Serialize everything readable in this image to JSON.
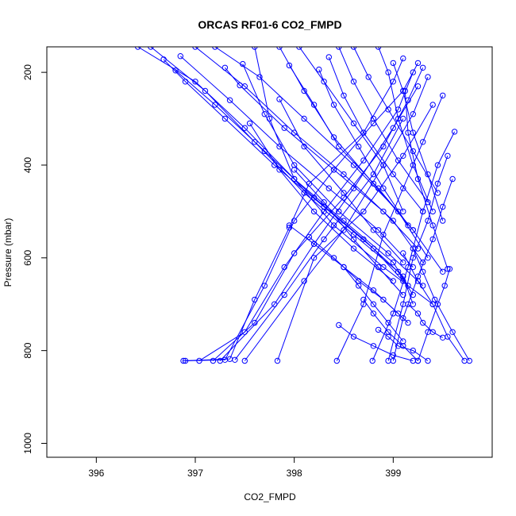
{
  "chart_data": {
    "type": "line",
    "title": "ORCAS RF01-6 CO2_FMPD",
    "xlabel": "CO2_FMPD",
    "ylabel": "Pressure (mbar)",
    "xlim": [
      395.5,
      400.0
    ],
    "ylim": [
      1030,
      145
    ],
    "y_reversed": true,
    "grid": false,
    "legend": "none",
    "color": "#0000ff",
    "xticks": [
      396,
      397,
      398,
      399
    ],
    "yticks": [
      200,
      400,
      600,
      800,
      1000
    ],
    "series": [
      {
        "x": [
          396.88,
          397.35,
          397.6,
          397.95,
          398.15,
          398.7,
          399.0,
          399.1
        ],
        "y": [
          822,
          818,
          690,
          535,
          440,
          330,
          220,
          170
        ]
      },
      {
        "x": [
          396.9,
          397.3,
          397.7,
          398.0,
          398.4,
          398.8,
          399.1,
          399.25
        ],
        "y": [
          822,
          820,
          660,
          520,
          410,
          310,
          240,
          180
        ]
      },
      {
        "x": [
          397.04,
          397.5,
          397.9,
          398.3,
          398.7,
          399.05,
          399.2
        ],
        "y": [
          822,
          760,
          620,
          500,
          390,
          280,
          200
        ]
      },
      {
        "x": [
          397.18,
          397.6,
          398.0,
          398.5,
          398.9,
          399.15,
          399.3
        ],
        "y": [
          822,
          740,
          590,
          470,
          360,
          260,
          190
        ]
      },
      {
        "x": [
          397.25,
          397.8,
          398.2,
          398.6,
          399.0,
          399.25
        ],
        "y": [
          822,
          700,
          570,
          450,
          320,
          230
        ]
      },
      {
        "x": [
          397.4,
          397.9,
          398.3,
          398.8,
          399.1
        ],
        "y": [
          820,
          680,
          560,
          420,
          300
        ]
      },
      {
        "x": [
          397.5,
          398.1,
          398.5,
          398.9,
          399.2,
          399.35
        ],
        "y": [
          822,
          650,
          540,
          400,
          290,
          210
        ]
      },
      {
        "x": [
          397.83,
          398.2,
          398.7,
          399.1,
          399.4
        ],
        "y": [
          822,
          600,
          500,
          380,
          270
        ]
      },
      {
        "x": [
          398.43,
          398.7,
          398.9,
          399.1,
          399.3,
          399.5
        ],
        "y": [
          822,
          700,
          550,
          450,
          350,
          250
        ]
      },
      {
        "x": [
          398.79,
          399.0,
          399.15,
          399.3,
          399.45,
          399.62
        ],
        "y": [
          822,
          720,
          620,
          500,
          400,
          328
        ]
      },
      {
        "x": [
          398.95,
          399.1,
          399.2,
          399.35,
          399.45,
          399.55
        ],
        "y": [
          822,
          700,
          600,
          520,
          440,
          380
        ]
      },
      {
        "x": [
          399.0,
          399.1,
          399.25,
          399.4,
          399.5,
          399.6
        ],
        "y": [
          822,
          730,
          640,
          560,
          490,
          430
        ]
      },
      {
        "x": [
          399.25,
          399.35,
          399.45,
          399.52,
          399.57
        ],
        "y": [
          822,
          760,
          700,
          660,
          624
        ]
      },
      {
        "x": [
          399.72,
          399.55,
          399.4,
          399.25,
          399.1
        ],
        "y": [
          822,
          770,
          700,
          650,
          590
        ]
      },
      {
        "x": [
          399.77,
          399.6,
          399.42,
          399.3,
          399.2
        ],
        "y": [
          822,
          760,
          690,
          630,
          580
        ]
      },
      {
        "x": [
          396.42,
          397.0,
          397.5,
          398.0,
          398.5,
          399.0,
          399.15
        ],
        "y": [
          145,
          220,
          320,
          430,
          520,
          610,
          660
        ]
      },
      {
        "x": [
          396.55,
          397.1,
          397.6,
          398.1,
          398.6,
          399.05,
          399.2
        ],
        "y": [
          145,
          240,
          350,
          460,
          550,
          630,
          680
        ]
      },
      {
        "x": [
          396.68,
          396.9,
          397.3,
          397.8,
          398.3,
          398.8,
          399.1
        ],
        "y": [
          172,
          220,
          300,
          400,
          490,
          580,
          650
        ]
      },
      {
        "x": [
          396.8,
          397.2,
          397.7,
          398.2,
          398.7,
          399.1,
          399.2
        ],
        "y": [
          196,
          270,
          370,
          470,
          560,
          640,
          700
        ]
      },
      {
        "x": [
          396.85,
          397.35,
          397.85,
          398.35,
          398.85,
          399.2
        ],
        "y": [
          165,
          260,
          360,
          450,
          540,
          620
        ]
      },
      {
        "x": [
          397.0,
          397.5,
          398.0,
          398.5,
          399.0,
          399.3
        ],
        "y": [
          145,
          230,
          330,
          420,
          520,
          610
        ]
      },
      {
        "x": [
          397.2,
          397.65,
          398.1,
          398.6,
          399.05,
          399.35
        ],
        "y": [
          145,
          210,
          300,
          400,
          500,
          600
        ]
      },
      {
        "x": [
          397.3,
          397.45,
          397.9,
          398.4,
          398.9,
          399.25
        ],
        "y": [
          190,
          228,
          320,
          410,
          500,
          580
        ]
      },
      {
        "x": [
          397.48,
          397.7,
          398.0,
          398.45,
          398.95,
          399.3
        ],
        "y": [
          182,
          290,
          400,
          500,
          590,
          660
        ]
      },
      {
        "x": [
          397.6,
          397.75,
          398.0,
          398.4,
          398.9,
          399.4
        ],
        "y": [
          145,
          300,
          430,
          530,
          620,
          700
        ]
      },
      {
        "x": [
          397.85,
          398.1,
          398.4,
          398.8,
          399.2,
          399.5
        ],
        "y": [
          145,
          240,
          340,
          440,
          540,
          630
        ]
      },
      {
        "x": [
          397.95,
          398.2,
          398.45,
          398.85,
          399.2
        ],
        "y": [
          185,
          270,
          360,
          450,
          540
        ]
      },
      {
        "x": [
          398.05,
          398.3,
          398.6,
          398.9,
          399.1
        ],
        "y": [
          145,
          220,
          310,
          400,
          500
        ]
      },
      {
        "x": [
          398.25,
          398.4,
          398.65,
          398.9,
          399.15
        ],
        "y": [
          194,
          270,
          360,
          450,
          530
        ]
      },
      {
        "x": [
          398.35,
          398.5,
          398.7,
          399.0,
          399.3
        ],
        "y": [
          167,
          250,
          330,
          420,
          500
        ]
      },
      {
        "x": [
          398.45,
          398.6,
          398.8,
          399.05,
          399.35
        ],
        "y": [
          145,
          220,
          300,
          390,
          480
        ]
      },
      {
        "x": [
          398.6,
          398.75,
          398.95,
          399.2,
          399.45
        ],
        "y": [
          145,
          210,
          280,
          370,
          460
        ]
      },
      {
        "x": [
          398.85,
          398.95,
          399.05,
          399.2,
          399.4
        ],
        "y": [
          145,
          200,
          300,
          400,
          500
        ]
      },
      {
        "x": [
          399.0,
          399.1,
          399.2,
          399.35,
          399.5
        ],
        "y": [
          180,
          240,
          330,
          420,
          520
        ]
      },
      {
        "x": [
          399.12,
          399.15,
          399.25,
          399.4,
          399.55
        ],
        "y": [
          240,
          330,
          430,
          530,
          624
        ]
      },
      {
        "x": [
          397.85,
          398.1,
          398.5,
          398.8,
          399.1
        ],
        "y": [
          258,
          360,
          460,
          540,
          610
        ]
      },
      {
        "x": [
          397.55,
          397.85,
          398.2,
          398.6,
          399.0
        ],
        "y": [
          310,
          410,
          500,
          580,
          650
        ]
      },
      {
        "x": [
          398.0,
          398.3,
          398.6,
          398.85,
          399.1
        ],
        "y": [
          410,
          480,
          560,
          620,
          680
        ]
      },
      {
        "x": [
          397.95,
          398.2,
          398.5,
          398.8,
          399.05
        ],
        "y": [
          530,
          570,
          620,
          670,
          720
        ]
      },
      {
        "x": [
          398.15,
          398.4,
          398.65,
          398.9,
          399.15
        ],
        "y": [
          555,
          600,
          650,
          690,
          740
        ]
      },
      {
        "x": [
          398.5,
          398.65,
          398.8,
          398.95,
          399.1
        ],
        "y": [
          620,
          660,
          700,
          740,
          780
        ]
      },
      {
        "x": [
          398.7,
          398.8,
          398.95,
          399.1,
          399.25
        ],
        "y": [
          690,
          720,
          760,
          790,
          822
        ]
      },
      {
        "x": [
          398.45,
          398.6,
          398.8,
          399.0,
          399.2
        ],
        "y": [
          745,
          770,
          790,
          810,
          822
        ]
      },
      {
        "x": [
          398.85,
          398.95,
          399.05,
          399.2,
          399.35
        ],
        "y": [
          755,
          770,
          790,
          800,
          822
        ]
      },
      {
        "x": [
          399.15,
          399.25,
          399.3,
          399.4,
          399.5
        ],
        "y": [
          700,
          720,
          740,
          760,
          772
        ]
      }
    ]
  }
}
